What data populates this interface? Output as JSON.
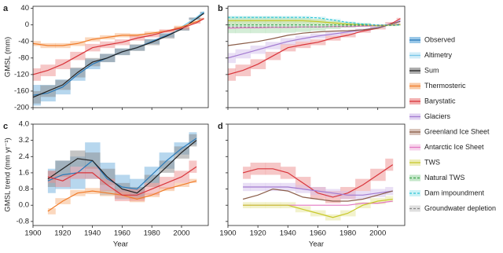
{
  "chart_data": [
    {
      "type": "line",
      "panel": "a",
      "ylabel": "GMSL (mm)",
      "xlim": [
        1900,
        2018
      ],
      "xticks": [
        1900,
        1920,
        1940,
        1960,
        1980,
        2000
      ],
      "xtick_labels": false,
      "ylim": [
        -200,
        45
      ],
      "yticks": [
        -200,
        -160,
        -120,
        -80,
        -40,
        0,
        40
      ],
      "ytick_labels": true,
      "x": [
        1900,
        1910,
        1920,
        1930,
        1940,
        1950,
        1960,
        1970,
        1980,
        1990,
        2000,
        2010,
        2015
      ],
      "series": [
        {
          "name": "Observed",
          "color": "#2a7ab9",
          "band_color": "#6fb0de",
          "values": [
            -170,
            -165,
            -150,
            -120,
            -95,
            -80,
            -65,
            -55,
            -40,
            -25,
            -10,
            15,
            30
          ],
          "error": [
            25,
            20,
            18,
            15,
            12,
            10,
            8,
            7,
            6,
            5,
            3,
            2,
            2
          ]
        },
        {
          "name": "Altimetry",
          "color": "#76c6e8",
          "band_color": "#bfe6f5",
          "values": [
            null,
            null,
            null,
            null,
            null,
            null,
            null,
            null,
            null,
            null,
            -5,
            18,
            32
          ]
        },
        {
          "name": "Sum",
          "color": "#222222",
          "band_color": "#8c8c8c",
          "values": [
            -175,
            -160,
            -145,
            -115,
            -90,
            -80,
            -65,
            -55,
            -42,
            -27,
            -10,
            15,
            28
          ],
          "error": [
            15,
            14,
            12,
            12,
            10,
            10,
            8,
            8,
            7,
            6,
            4,
            3,
            3
          ]
        },
        {
          "name": "Thermosteric",
          "color": "#f07c2a",
          "band_color": "#f7b27e",
          "values": [
            -45,
            -50,
            -50,
            -45,
            -35,
            -30,
            -25,
            -25,
            -20,
            -15,
            -5,
            8,
            15
          ],
          "error": [
            6,
            6,
            6,
            6,
            5,
            5,
            5,
            4,
            4,
            3,
            3,
            2,
            2
          ]
        },
        {
          "name": "Barystatic",
          "color": "#d9353b",
          "band_color": "#ee8f8f",
          "values": [
            -120,
            -110,
            -95,
            -75,
            -55,
            -48,
            -42,
            -32,
            -25,
            -15,
            -8,
            5,
            15
          ],
          "error": [
            15,
            14,
            12,
            10,
            9,
            8,
            7,
            6,
            5,
            4,
            3,
            2,
            2
          ]
        }
      ]
    },
    {
      "type": "line",
      "panel": "b",
      "xlim": [
        1900,
        2018
      ],
      "xticks": [
        1900,
        1920,
        1940,
        1960,
        1980,
        2000
      ],
      "xtick_labels": false,
      "ylim": [
        -200,
        45
      ],
      "yticks": [
        -200,
        -160,
        -120,
        -80,
        -40,
        0,
        40
      ],
      "ytick_labels": false,
      "x": [
        1900,
        1910,
        1920,
        1930,
        1940,
        1950,
        1960,
        1970,
        1980,
        1990,
        2000,
        2010,
        2015
      ],
      "series": [
        {
          "name": "Barystatic",
          "color": "#d9353b",
          "band_color": "#ee8f8f",
          "values": [
            -120,
            -110,
            -95,
            -75,
            -55,
            -48,
            -42,
            -32,
            -25,
            -15,
            -8,
            5,
            15
          ],
          "error": [
            15,
            14,
            12,
            10,
            9,
            8,
            7,
            6,
            5,
            4,
            3,
            2,
            2
          ]
        },
        {
          "name": "Glaciers",
          "color": "#a37bd1",
          "band_color": "#d3bfec",
          "values": [
            -80,
            -70,
            -60,
            -50,
            -40,
            -33,
            -27,
            -22,
            -17,
            -12,
            -6,
            3,
            10
          ],
          "error": [
            12,
            11,
            10,
            9,
            8,
            7,
            6,
            5,
            4,
            3,
            2,
            2,
            2
          ]
        },
        {
          "name": "Greenland Ice Sheet",
          "color": "#8b5e4a",
          "band_color": "#c8aa9c",
          "values": [
            -50,
            -45,
            -40,
            -33,
            -25,
            -20,
            -17,
            -15,
            -14,
            -12,
            -8,
            3,
            8
          ]
        },
        {
          "name": "Antarctic Ice Sheet",
          "color": "#e377c2",
          "band_color": "#f3c0e3",
          "values": [
            -8,
            -7,
            -7,
            -6,
            -6,
            -5,
            -5,
            -4,
            -4,
            -3,
            -2,
            0,
            2
          ]
        },
        {
          "name": "TWS",
          "color": "#c8c82a",
          "band_color": "#e6e69a",
          "values": [
            10,
            10,
            10,
            10,
            10,
            10,
            8,
            5,
            2,
            0,
            -2,
            0,
            1
          ],
          "error": [
            8,
            8,
            8,
            8,
            8,
            7,
            6,
            5,
            4,
            3,
            2,
            2,
            2
          ]
        },
        {
          "name": "Natural TWS",
          "color": "#3fa34d",
          "band_color": "#a9dbb0",
          "dash": true,
          "values": [
            0,
            0,
            0,
            0,
            0,
            0,
            0,
            0,
            0,
            0,
            -2,
            -1,
            0
          ],
          "error": [
            20,
            20,
            20,
            20,
            19,
            17,
            14,
            10,
            7,
            5,
            3,
            2,
            2
          ]
        },
        {
          "name": "Dam impoundment",
          "color": "#2fc5d5",
          "band_color": "#b5ecf2",
          "dash": true,
          "values": [
            18,
            18,
            18,
            18,
            18,
            18,
            17,
            12,
            6,
            2,
            0,
            0,
            0
          ],
          "error": [
            4,
            4,
            4,
            4,
            4,
            4,
            3,
            3,
            2,
            1,
            1,
            1,
            1
          ]
        },
        {
          "name": "Groundwater depletion",
          "color": "#888888",
          "band_color": "#d2d2d2",
          "dash": true,
          "values": [
            -5,
            -5,
            -5,
            -5,
            -5,
            -5,
            -5,
            -4,
            -3,
            -2,
            -1,
            0,
            2
          ]
        }
      ]
    },
    {
      "type": "line",
      "panel": "c",
      "ylabel": "GMSL trend (mm yr⁻¹)",
      "xlabel": "Year",
      "xlim": [
        1900,
        2018
      ],
      "xticks": [
        1900,
        1920,
        1940,
        1960,
        1980,
        2000
      ],
      "xtick_labels": true,
      "ylim": [
        -1.0,
        4.0
      ],
      "yticks": [
        -0.8,
        {
          "value": 0,
          "label": "0.0"
        },
        {
          "value": 0.8,
          "label": "0.8"
        },
        1.6,
        2.4,
        3.2,
        {
          "value": 4,
          "label": "4.0"
        }
      ],
      "ytick_labels": true,
      "x": [
        1900,
        1910,
        1920,
        1930,
        1940,
        1950,
        1960,
        1970,
        1980,
        1990,
        2000,
        2010,
        2015
      ],
      "series": [
        {
          "name": "Observed",
          "color": "#2a7ab9",
          "band_color": "#6fb0de",
          "values": [
            null,
            1.2,
            1.5,
            1.6,
            2.2,
            1.3,
            0.9,
            0.8,
            1.5,
            2.2,
            2.8,
            3.3,
            null
          ],
          "error": [
            null,
            0.6,
            0.7,
            0.8,
            0.9,
            0.8,
            0.6,
            0.5,
            0.4,
            0.4,
            0.3,
            0.3,
            null
          ]
        },
        {
          "name": "Sum",
          "color": "#222222",
          "band_color": "#8c8c8c",
          "values": [
            null,
            1.3,
            1.8,
            2.3,
            2.2,
            1.4,
            0.8,
            0.6,
            1.2,
            1.9,
            2.6,
            3.2,
            null
          ],
          "error": [
            null,
            0.4,
            0.4,
            0.4,
            0.4,
            0.4,
            0.3,
            0.3,
            0.3,
            0.3,
            0.3,
            0.3,
            null
          ]
        },
        {
          "name": "Thermosteric",
          "color": "#f07c2a",
          "band_color": "#f7b27e",
          "values": [
            null,
            -0.3,
            0.2,
            0.6,
            0.7,
            0.6,
            0.5,
            0.3,
            0.5,
            0.8,
            1.0,
            1.2,
            null
          ],
          "error": [
            null,
            0.15,
            0.15,
            0.15,
            0.15,
            0.15,
            0.15,
            0.15,
            0.1,
            0.1,
            0.1,
            0.1,
            null
          ]
        },
        {
          "name": "Barystatic",
          "color": "#d9353b",
          "band_color": "#ee8f8f",
          "values": [
            null,
            1.4,
            1.2,
            1.6,
            1.6,
            1.0,
            0.5,
            0.5,
            0.8,
            1.1,
            1.4,
            1.9,
            null
          ],
          "error": [
            null,
            0.3,
            0.3,
            0.3,
            0.3,
            0.3,
            0.3,
            0.3,
            0.3,
            0.3,
            0.3,
            0.3,
            null
          ]
        }
      ]
    },
    {
      "type": "line",
      "panel": "d",
      "xlabel": "Year",
      "xlim": [
        1900,
        2018
      ],
      "xticks": [
        1900,
        1920,
        1940,
        1960,
        1980,
        2000
      ],
      "xtick_labels": true,
      "ylim": [
        -1.0,
        4.0
      ],
      "yticks": [
        -0.8,
        0,
        0.8,
        1.6,
        2.4,
        3.2,
        4
      ],
      "ytick_labels": false,
      "x": [
        1900,
        1910,
        1920,
        1930,
        1940,
        1950,
        1960,
        1970,
        1980,
        1990,
        2000,
        2010,
        2015
      ],
      "series": [
        {
          "name": "Barystatic",
          "color": "#d9353b",
          "band_color": "#ee8f8f",
          "values": [
            null,
            1.6,
            1.8,
            1.8,
            1.6,
            1.1,
            0.6,
            0.4,
            0.6,
            1.0,
            1.5,
            2.0,
            null
          ],
          "error": [
            null,
            0.3,
            0.3,
            0.3,
            0.3,
            0.3,
            0.3,
            0.3,
            0.3,
            0.3,
            0.3,
            0.3,
            null
          ]
        },
        {
          "name": "Glaciers",
          "color": "#a37bd1",
          "band_color": "#d3bfec",
          "values": [
            null,
            0.9,
            0.9,
            0.9,
            0.9,
            0.8,
            0.7,
            0.6,
            0.5,
            0.5,
            0.6,
            0.7,
            null
          ],
          "error": [
            null,
            0.2,
            0.2,
            0.2,
            0.2,
            0.2,
            0.2,
            0.2,
            0.2,
            0.2,
            0.2,
            0.2,
            null
          ]
        },
        {
          "name": "Greenland Ice Sheet",
          "color": "#8b5e4a",
          "band_color": "#c8aa9c",
          "values": [
            null,
            0.3,
            0.5,
            0.8,
            0.7,
            0.4,
            0.3,
            0.2,
            0.2,
            0.3,
            0.5,
            0.7,
            null
          ]
        },
        {
          "name": "Antarctic Ice Sheet",
          "color": "#e377c2",
          "band_color": "#f3c0e3",
          "values": [
            null,
            0.0,
            0.0,
            0.0,
            0.0,
            0.0,
            0.0,
            0.0,
            0.0,
            0.1,
            0.1,
            0.2,
            null
          ]
        },
        {
          "name": "TWS",
          "color": "#c8c82a",
          "band_color": "#e6e69a",
          "values": [
            null,
            0.0,
            0.0,
            0.0,
            0.0,
            -0.2,
            -0.4,
            -0.6,
            -0.4,
            0.0,
            0.2,
            0.3,
            null
          ],
          "error": [
            null,
            0.15,
            0.15,
            0.15,
            0.15,
            0.15,
            0.15,
            0.15,
            0.15,
            0.15,
            0.15,
            0.15,
            null
          ]
        }
      ]
    }
  ]
}
